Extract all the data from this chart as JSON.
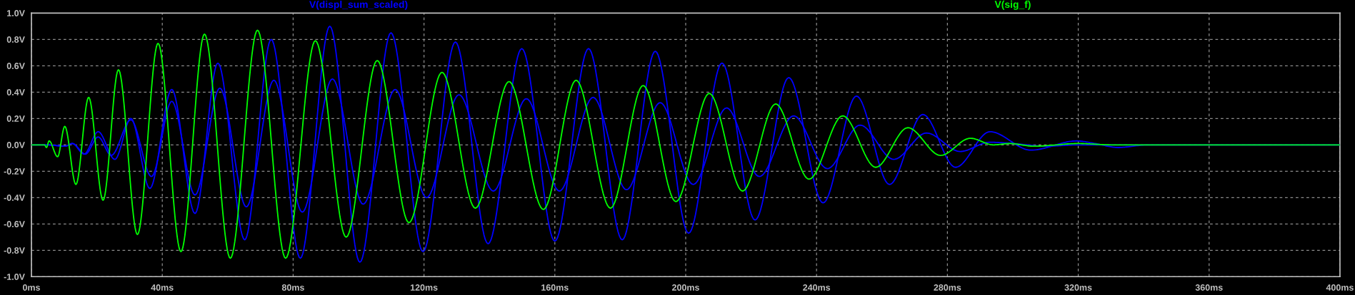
{
  "chart_data": {
    "type": "line",
    "xlim": [
      0,
      400
    ],
    "xticks": [
      {
        "value": 0,
        "label": "0ms"
      },
      {
        "value": 40,
        "label": "40ms"
      },
      {
        "value": 80,
        "label": "80ms"
      },
      {
        "value": 120,
        "label": "120ms"
      },
      {
        "value": 160,
        "label": "160ms"
      },
      {
        "value": 200,
        "label": "200ms"
      },
      {
        "value": 240,
        "label": "240ms"
      },
      {
        "value": 280,
        "label": "280ms"
      },
      {
        "value": 320,
        "label": "320ms"
      },
      {
        "value": 360,
        "label": "360ms"
      },
      {
        "value": 400,
        "label": "400ms"
      }
    ],
    "ylim": [
      -1.0,
      1.0
    ],
    "yticks": [
      {
        "value": 1.0,
        "label": "1.0V"
      },
      {
        "value": 0.8,
        "label": "0.8V"
      },
      {
        "value": 0.6,
        "label": "0.6V"
      },
      {
        "value": 0.4,
        "label": "0.4V"
      },
      {
        "value": 0.2,
        "label": "0.2V"
      },
      {
        "value": 0.0,
        "label": "0.0V"
      },
      {
        "value": -0.2,
        "label": "-0.2V"
      },
      {
        "value": -0.4,
        "label": "-0.4V"
      },
      {
        "value": -0.6,
        "label": "-0.6V"
      },
      {
        "value": -0.8,
        "label": "-0.8V"
      },
      {
        "value": -1.0,
        "label": "-1.0V"
      }
    ],
    "grid": true,
    "legend": "top",
    "line_style": "solid",
    "series": [
      {
        "name": "V(displ_sum_scaled)",
        "color": "#0000ff",
        "x": [
          0,
          4.5,
          10.3,
          12.5,
          16.1,
          20.4,
          25.5,
          30.4,
          36.2,
          42.9,
          50.0,
          57.0,
          65.2,
          73.3,
          82.2,
          91.2,
          100.4,
          109.9,
          119.7,
          129.6,
          139.6,
          149.9,
          160.0,
          170.3,
          180.6,
          190.7,
          200.9,
          211.1,
          221.2,
          231.5,
          242.0,
          252.2,
          262.3,
          272.5,
          282.5,
          293.0,
          305.5,
          319.5,
          325.2,
          332.2,
          341.3,
          400
        ],
        "values": [
          0,
          0,
          -0.01,
          0.01,
          -0.07,
          0.1,
          -0.11,
          0.2,
          -0.33,
          0.42,
          -0.52,
          0.62,
          -0.72,
          0.8,
          -0.86,
          0.9,
          -0.89,
          0.85,
          -0.81,
          0.78,
          -0.75,
          0.73,
          -0.73,
          0.73,
          -0.72,
          0.71,
          -0.67,
          0.62,
          -0.57,
          0.51,
          -0.44,
          0.37,
          -0.3,
          0.23,
          -0.17,
          0.1,
          -0.04,
          0.03,
          0.01,
          -0.02,
          0.0,
          0
        ]
      },
      {
        "color": "#0000ff",
        "x": [
          0,
          4.5,
          10.3,
          12.5,
          16.5,
          20.4,
          24.4,
          30.4,
          36.7,
          42.9,
          50.0,
          57.6,
          65.7,
          74.1,
          82.8,
          92.0,
          101.4,
          111.2,
          120.8,
          130.7,
          141.2,
          151.3,
          161.4,
          171.7,
          181.9,
          192.2,
          202.3,
          212.5,
          222.5,
          233.0,
          243.3,
          253.3,
          263.6,
          273.6,
          283.9,
          293.0,
          300.0,
          310.0,
          320.0,
          400
        ],
        "values": [
          0,
          0,
          -0.01,
          0.01,
          -0.07,
          0.06,
          -0.08,
          0.19,
          -0.24,
          0.33,
          -0.38,
          0.43,
          -0.47,
          0.49,
          -0.51,
          0.5,
          -0.45,
          0.42,
          -0.4,
          0.38,
          -0.35,
          0.35,
          -0.35,
          0.36,
          -0.34,
          0.32,
          -0.3,
          0.28,
          -0.24,
          0.22,
          -0.18,
          0.15,
          -0.11,
          0.09,
          -0.05,
          0.02,
          0.01,
          -0.01,
          0,
          0
        ]
      },
      {
        "name": "V(sig_f)",
        "color": "#00ff00",
        "x": [
          0,
          4.0,
          4.6,
          5.4,
          8.0,
          10.2,
          13.6,
          17.5,
          21.9,
          26.6,
          32.4,
          38.7,
          45.7,
          52.9,
          60.8,
          69.1,
          77.7,
          86.8,
          96.2,
          105.7,
          115.4,
          125.5,
          135.7,
          146.0,
          156.5,
          166.5,
          177.0,
          187.0,
          197.0,
          207.2,
          217.4,
          227.5,
          237.7,
          248.0,
          258.1,
          267.9,
          277.9,
          287.0,
          294.1,
          299.1,
          306.4,
          320.2,
          330,
          400
        ],
        "values": [
          0,
          0,
          -0.02,
          0.03,
          -0.09,
          0.14,
          -0.3,
          0.36,
          -0.42,
          0.57,
          -0.68,
          0.77,
          -0.81,
          0.84,
          -0.86,
          0.87,
          -0.86,
          0.79,
          -0.7,
          0.64,
          -0.59,
          0.55,
          -0.48,
          0.48,
          -0.49,
          0.49,
          -0.48,
          0.45,
          -0.43,
          0.39,
          -0.35,
          0.31,
          -0.26,
          0.22,
          -0.17,
          0.13,
          -0.08,
          0.05,
          0.0,
          0.01,
          -0.01,
          0.01,
          0,
          0
        ]
      }
    ]
  }
}
